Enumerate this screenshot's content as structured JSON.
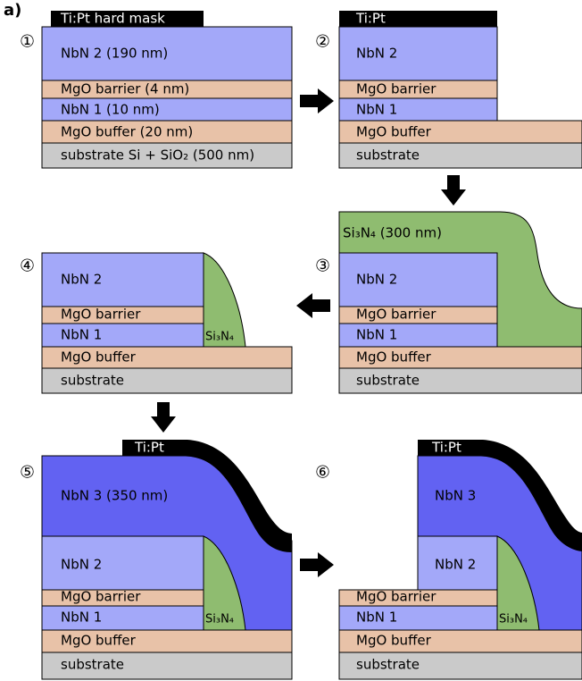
{
  "figure_label": "a)",
  "panels": [
    {
      "step": "①",
      "labels": [
        "Ti:Pt hard mask",
        "NbN 2 (190 nm)",
        "MgO barrier (4 nm)",
        "NbN 1 (10 nm)",
        "MgO buffer (20 nm)",
        "substrate Si + SiO₂ (500 nm)"
      ]
    },
    {
      "step": "②",
      "labels": [
        "Ti:Pt",
        "NbN 2",
        "MgO barrier",
        "NbN 1",
        "MgO buffer",
        "substrate"
      ]
    },
    {
      "step": "③",
      "labels": [
        "Si₃N₄ (300 nm)",
        "NbN 2",
        "MgO barrier",
        "NbN 1",
        "MgO buffer",
        "substrate"
      ]
    },
    {
      "step": "④",
      "labels": [
        "NbN 2",
        "MgO barrier",
        "NbN 1",
        "Si₃N₄",
        "MgO buffer",
        "substrate"
      ]
    },
    {
      "step": "⑤",
      "labels": [
        "Ti:Pt",
        "NbN 3 (350 nm)",
        "NbN 2",
        "MgO barrier",
        "NbN 1",
        "Si₃N₄",
        "MgO buffer",
        "substrate"
      ]
    },
    {
      "step": "⑥",
      "labels": [
        "Ti:Pt",
        "NbN 3",
        "NbN 2",
        "MgO barrier",
        "NbN 1",
        "Si₃N₄",
        "MgO buffer",
        "substrate"
      ]
    }
  ]
}
